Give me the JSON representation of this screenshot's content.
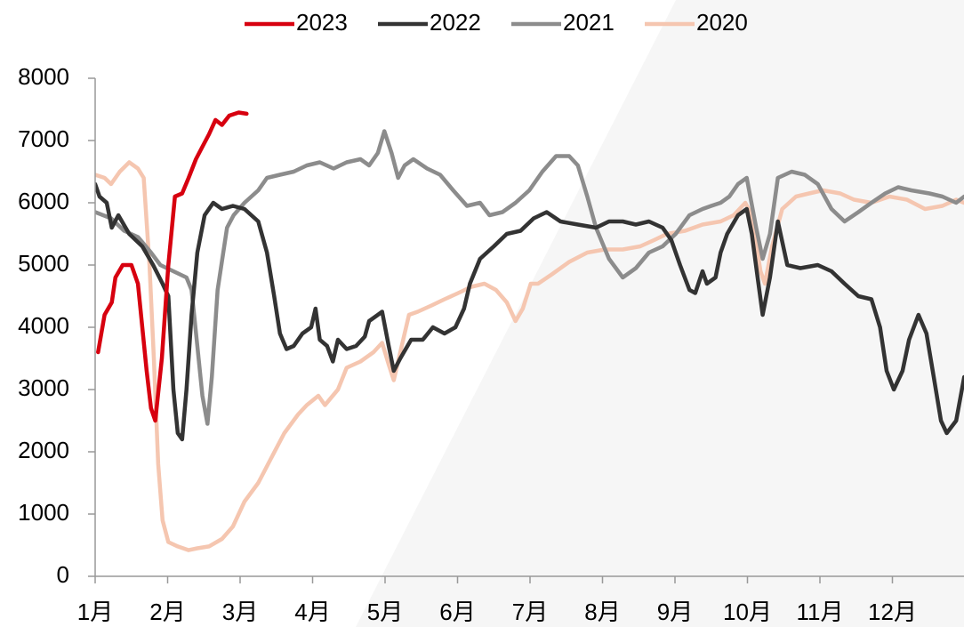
{
  "chart_data": {
    "type": "line",
    "xlim": [
      1,
      13
    ],
    "ylim": [
      0,
      8000
    ],
    "yticks": [
      0,
      1000,
      2000,
      3000,
      4000,
      5000,
      6000,
      7000,
      8000
    ],
    "xticks": [
      {
        "value": 1,
        "label": "1月"
      },
      {
        "value": 2,
        "label": "2月"
      },
      {
        "value": 3,
        "label": "3月"
      },
      {
        "value": 4,
        "label": "4月"
      },
      {
        "value": 5,
        "label": "5月"
      },
      {
        "value": 6,
        "label": "6月"
      },
      {
        "value": 7,
        "label": "7月"
      },
      {
        "value": 8,
        "label": "8月"
      },
      {
        "value": 9,
        "label": "9月"
      },
      {
        "value": 10,
        "label": "10月"
      },
      {
        "value": 11,
        "label": "11月"
      },
      {
        "value": 12,
        "label": "12月"
      }
    ],
    "legend": "top",
    "series": [
      {
        "name": "2023",
        "color": "#d7000f",
        "x": [
          1.04,
          1.13,
          1.23,
          1.28,
          1.38,
          1.5,
          1.59,
          1.65,
          1.71,
          1.77,
          1.83,
          1.92,
          2.01,
          2.1,
          2.2,
          2.29,
          2.39,
          2.48,
          2.57,
          2.66,
          2.75,
          2.85,
          2.98,
          3.09
        ],
        "values": [
          3600,
          4200,
          4400,
          4800,
          5000,
          5000,
          4700,
          4000,
          3300,
          2700,
          2500,
          3500,
          5000,
          6100,
          6150,
          6400,
          6700,
          6900,
          7100,
          7330,
          7250,
          7400,
          7450,
          7430
        ]
      },
      {
        "name": "2022",
        "color": "#333333",
        "x": [
          1.0,
          1.06,
          1.16,
          1.23,
          1.32,
          1.47,
          1.65,
          1.8,
          1.93,
          2.01,
          2.08,
          2.14,
          2.2,
          2.26,
          2.33,
          2.41,
          2.51,
          2.63,
          2.75,
          2.9,
          3.06,
          3.25,
          3.37,
          3.47,
          3.55,
          3.64,
          3.74,
          3.86,
          3.98,
          4.04,
          4.1,
          4.2,
          4.28,
          4.35,
          4.47,
          4.6,
          4.72,
          4.78,
          4.9,
          4.96,
          5.05,
          5.12,
          5.21,
          5.36,
          5.52,
          5.66,
          5.82,
          5.97,
          6.09,
          6.17,
          6.31,
          6.5,
          6.68,
          6.87,
          7.05,
          7.23,
          7.42,
          7.66,
          7.91,
          8.09,
          8.28,
          8.46,
          8.64,
          8.83,
          8.95,
          9.07,
          9.2,
          9.28,
          9.38,
          9.44,
          9.56,
          9.63,
          9.72,
          9.87,
          9.99,
          10.06,
          10.14,
          10.21,
          10.31,
          10.42,
          10.55,
          10.73,
          10.97,
          11.16,
          11.34,
          11.53,
          11.71,
          11.83,
          11.92,
          12.02,
          12.14,
          12.23,
          12.36,
          12.47,
          12.57,
          12.67,
          12.75,
          12.88,
          12.99
        ],
        "values": [
          6300,
          6100,
          6000,
          5600,
          5800,
          5500,
          5300,
          5000,
          4700,
          4500,
          3000,
          2300,
          2200,
          3000,
          4200,
          5200,
          5800,
          6000,
          5900,
          5950,
          5900,
          5700,
          5200,
          4500,
          3900,
          3650,
          3700,
          3900,
          4000,
          4300,
          3800,
          3700,
          3450,
          3800,
          3650,
          3700,
          3850,
          4100,
          4200,
          4250,
          3700,
          3300,
          3500,
          3800,
          3800,
          4000,
          3900,
          4000,
          4300,
          4700,
          5100,
          5300,
          5500,
          5550,
          5750,
          5850,
          5700,
          5650,
          5600,
          5700,
          5700,
          5650,
          5700,
          5600,
          5400,
          5000,
          4600,
          4550,
          4900,
          4700,
          4800,
          5200,
          5500,
          5800,
          5900,
          5500,
          4800,
          4200,
          4800,
          5700,
          5000,
          4950,
          5000,
          4900,
          4700,
          4500,
          4450,
          4000,
          3300,
          3000,
          3300,
          3800,
          4200,
          3900,
          3200,
          2500,
          2300,
          2500,
          3200
        ]
      },
      {
        "name": "2021",
        "color": "#8c8c8c",
        "x": [
          1.0,
          1.22,
          1.4,
          1.59,
          1.77,
          1.9,
          2.08,
          2.26,
          2.33,
          2.41,
          2.48,
          2.55,
          2.61,
          2.69,
          2.82,
          2.91,
          3.06,
          3.25,
          3.37,
          3.55,
          3.74,
          3.92,
          4.1,
          4.29,
          4.47,
          4.66,
          4.78,
          4.9,
          4.99,
          5.09,
          5.18,
          5.27,
          5.39,
          5.58,
          5.76,
          5.94,
          6.13,
          6.31,
          6.44,
          6.62,
          6.8,
          6.99,
          7.17,
          7.36,
          7.54,
          7.66,
          7.79,
          7.91,
          8.09,
          8.28,
          8.46,
          8.64,
          8.83,
          9.01,
          9.2,
          9.38,
          9.5,
          9.63,
          9.75,
          9.87,
          9.99,
          10.12,
          10.21,
          10.31,
          10.42,
          10.61,
          10.79,
          10.97,
          11.16,
          11.34,
          11.53,
          11.71,
          11.9,
          12.08,
          12.26,
          12.51,
          12.69,
          12.88,
          12.99
        ],
        "values": [
          5850,
          5750,
          5550,
          5450,
          5200,
          5000,
          4900,
          4800,
          4600,
          3700,
          2900,
          2450,
          3200,
          4600,
          5600,
          5800,
          6000,
          6200,
          6400,
          6450,
          6500,
          6600,
          6650,
          6550,
          6650,
          6700,
          6600,
          6800,
          7150,
          6800,
          6400,
          6600,
          6700,
          6550,
          6450,
          6200,
          5950,
          6000,
          5800,
          5850,
          6000,
          6200,
          6500,
          6750,
          6750,
          6600,
          6100,
          5600,
          5100,
          4800,
          4950,
          5200,
          5300,
          5500,
          5800,
          5900,
          5950,
          6000,
          6100,
          6300,
          6400,
          5600,
          5100,
          5500,
          6400,
          6500,
          6450,
          6300,
          5900,
          5700,
          5850,
          6000,
          6150,
          6250,
          6200,
          6150,
          6100,
          6000,
          6100
        ]
      },
      {
        "name": "2020",
        "color": "#f5c6b0",
        "x": [
          1.0,
          1.13,
          1.22,
          1.34,
          1.47,
          1.59,
          1.67,
          1.75,
          1.81,
          1.87,
          1.93,
          2.01,
          2.14,
          2.29,
          2.41,
          2.57,
          2.75,
          2.9,
          3.06,
          3.25,
          3.43,
          3.61,
          3.8,
          3.92,
          4.08,
          4.17,
          4.35,
          4.47,
          4.66,
          4.84,
          4.96,
          5.05,
          5.12,
          5.21,
          5.33,
          5.45,
          5.64,
          5.82,
          6.01,
          6.19,
          6.37,
          6.53,
          6.68,
          6.8,
          6.9,
          7.01,
          7.11,
          7.3,
          7.54,
          7.79,
          8.03,
          8.28,
          8.52,
          8.71,
          8.89,
          9.14,
          9.38,
          9.63,
          9.81,
          9.97,
          10.06,
          10.18,
          10.24,
          10.34,
          10.48,
          10.67,
          10.85,
          11.04,
          11.28,
          11.47,
          11.71,
          11.96,
          12.2,
          12.45,
          12.69,
          12.88,
          12.99
        ],
        "values": [
          6450,
          6400,
          6300,
          6500,
          6650,
          6550,
          6400,
          5000,
          3500,
          1800,
          900,
          550,
          480,
          420,
          450,
          480,
          600,
          800,
          1200,
          1500,
          1900,
          2300,
          2600,
          2750,
          2900,
          2750,
          3000,
          3350,
          3450,
          3600,
          3750,
          3400,
          3150,
          3600,
          4200,
          4250,
          4350,
          4450,
          4550,
          4650,
          4700,
          4600,
          4400,
          4100,
          4300,
          4700,
          4700,
          4850,
          5050,
          5200,
          5250,
          5250,
          5300,
          5400,
          5500,
          5550,
          5650,
          5700,
          5800,
          6000,
          5800,
          4900,
          4700,
          5300,
          5900,
          6100,
          6150,
          6200,
          6150,
          6050,
          6000,
          6100,
          6050,
          5900,
          5950,
          6050,
          6000
        ]
      }
    ]
  }
}
